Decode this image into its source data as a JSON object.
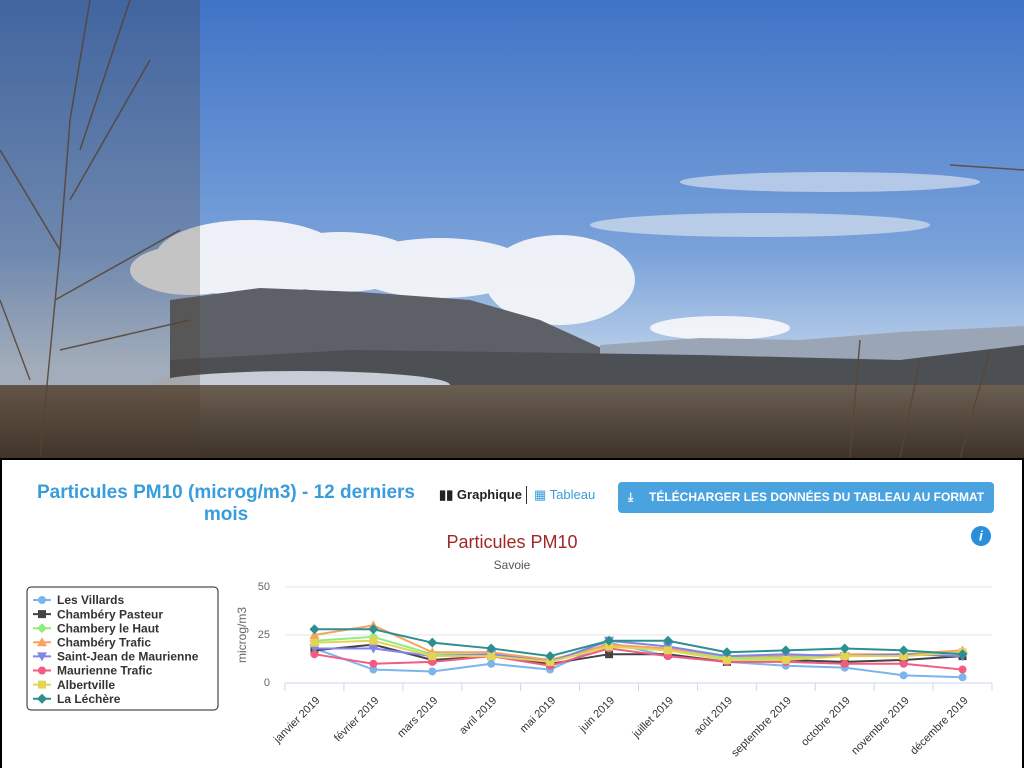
{
  "header": {
    "title": "Particules PM10 (microg/m3) - 12 derniers mois",
    "tab_chart": "Graphique",
    "tab_table": "Tableau",
    "download": "TÉLÉCHARGER LES DONNÉES DU TABLEAU AU FORMAT CSV",
    "info": "i"
  },
  "chart_data": {
    "type": "line",
    "title": "Particules PM10",
    "subtitle": "Savoie",
    "y_label": "microg/m3",
    "categories": [
      "janvier 2019",
      "février 2019",
      "mars 2019",
      "avril 2019",
      "mai 2019",
      "juin 2019",
      "juillet 2019",
      "août 2019",
      "septembre 2019",
      "octobre 2019",
      "novembre 2019",
      "décembre 2019"
    ],
    "ylim": [
      0,
      50
    ],
    "yticks": [
      0,
      25,
      50
    ],
    "grid": true,
    "series": [
      {
        "name": "Les Villards",
        "color": "#7cb5ec",
        "symbol": "circle",
        "values": [
          18,
          7,
          6,
          10,
          7,
          21,
          14,
          11,
          9,
          8,
          4,
          3
        ]
      },
      {
        "name": "Chambéry Pasteur",
        "color": "#434348",
        "symbol": "square",
        "values": [
          17,
          20,
          12,
          14,
          10,
          15,
          15,
          11,
          12,
          11,
          12,
          14
        ]
      },
      {
        "name": "Chambery le Haut",
        "color": "#90ed7d",
        "symbol": "diamond",
        "values": [
          22,
          24,
          15,
          15,
          11,
          19,
          17,
          13,
          13,
          14,
          15,
          16
        ]
      },
      {
        "name": "Chambéry Trafic",
        "color": "#f7a35c",
        "symbol": "triangle",
        "values": [
          25,
          30,
          16,
          16,
          12,
          20,
          18,
          14,
          14,
          15,
          15,
          17
        ]
      },
      {
        "name": "Saint-Jean de Maurienne",
        "color": "#8085e9",
        "symbol": "triangle-down",
        "values": [
          18,
          18,
          14,
          15,
          11,
          22,
          19,
          14,
          15,
          14,
          15,
          14
        ]
      },
      {
        "name": "Maurienne Trafic",
        "color": "#f15c80",
        "symbol": "circle",
        "values": [
          15,
          10,
          11,
          14,
          9,
          18,
          14,
          11,
          11,
          10,
          10,
          7
        ]
      },
      {
        "name": "Albertville",
        "color": "#e4d354",
        "symbol": "square",
        "values": [
          21,
          22,
          14,
          14,
          11,
          19,
          17,
          12,
          12,
          14,
          14,
          16
        ]
      },
      {
        "name": "La Léchère",
        "color": "#2b908f",
        "symbol": "diamond",
        "values": [
          28,
          28,
          21,
          18,
          14,
          22,
          22,
          16,
          17,
          18,
          17,
          15
        ]
      }
    ]
  }
}
